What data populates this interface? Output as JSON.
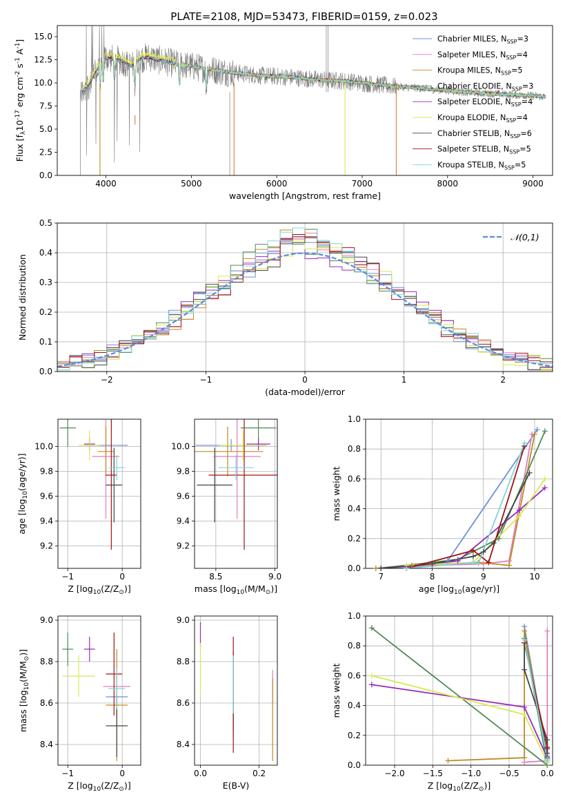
{
  "figure_title": "PLATE=2108, MJD=53473, FIBERID=0159, z=0.023",
  "series_names": [
    "Chabrier MILES, N$_{SSP}$=3",
    "Salpeter MILES, N$_{SSP}$=4",
    "Kroupa MILES, N$_{SSP}$=5",
    "Chabrier ELODIE, N$_{SSP}$=3",
    "Salpeter ELODIE, N$_{SSP}$=4",
    "Kroupa ELODIE, N$_{SSP}$=4",
    "Chabrier STELIB, N$_{SSP}$=6",
    "Salpeter STELIB, N$_{SSP}$=5",
    "Kroupa STELIB, N$_{SSP}$=5"
  ],
  "series_colors": [
    "#6a8fd8",
    "#e07ec0",
    "#c08a20",
    "#4e8a55",
    "#9a28b8",
    "#d8e850",
    "#444444",
    "#a01010",
    "#7fd4dc"
  ],
  "chart_data": [
    {
      "id": "spectrum",
      "type": "line",
      "title": "PLATE=2108, MJD=53473, FIBERID=0159, z=0.023",
      "xlabel": "wavelength [Angstrom, rest frame]",
      "ylabel": "Flux [f$_\\lambda$10$^{-17}$ erg cm$^{-2}$ s$^{-1}$ A$^{-1}$]",
      "xlim": [
        3430,
        9230
      ],
      "ylim": [
        0,
        16.2
      ],
      "xticks": [
        4000,
        5000,
        6000,
        7000,
        8000,
        9000
      ],
      "yticks": [
        0.0,
        2.5,
        5.0,
        7.5,
        10.0,
        12.5,
        15.0
      ],
      "ytick_labels": [
        "0.0",
        "2.5",
        "5.0",
        "7.5",
        "10.0",
        "12.5",
        "15.0"
      ],
      "legend": "upper right",
      "data_x": [
        3700,
        3800,
        3900,
        4000,
        4100,
        4200,
        4300,
        4400,
        4500,
        4600,
        4800,
        5000,
        5200,
        5400,
        5600,
        5800,
        6000,
        6200,
        6400,
        6600,
        6800,
        7000,
        7200,
        7400,
        7600,
        7800,
        8000,
        8200,
        8400,
        8600,
        8800,
        9000,
        9150
      ],
      "data_y": [
        8.8,
        9.8,
        11.5,
        12.7,
        12.6,
        12.3,
        11.8,
        12.6,
        12.8,
        12.5,
        12.1,
        11.8,
        11.5,
        11.2,
        11.0,
        10.8,
        10.7,
        10.6,
        10.4,
        10.3,
        10.2,
        10.0,
        9.8,
        9.6,
        9.5,
        9.3,
        9.2,
        9.0,
        8.9,
        8.8,
        8.7,
        8.6,
        8.5
      ]
    },
    {
      "id": "residuals",
      "type": "histogram",
      "xlabel": "(data-model)/error",
      "ylabel": "Normed distribution",
      "xlim": [
        -2.5,
        2.5
      ],
      "ylim": [
        0,
        0.5
      ],
      "xticks": [
        -2,
        -1,
        0,
        1,
        2
      ],
      "xtick_labels": [
        "−2",
        "−1",
        "0",
        "1",
        "2"
      ],
      "yticks": [
        0.0,
        0.1,
        0.2,
        0.3,
        0.4,
        0.5
      ],
      "ytick_labels": [
        "0.0",
        "0.1",
        "0.2",
        "0.3",
        "0.4",
        "0.5"
      ],
      "legend": "upper right",
      "reference_curve": "$\\mathcal{N}(0,1)$",
      "bin_width": 0.125
    },
    {
      "id": "age_vs_z",
      "type": "errorbar",
      "xlabel": "Z [log$_{10}$(Z/Z$_\\odot$)]",
      "ylabel": "age  [log$_{10}$(age/yr)]",
      "xlim": [
        -1.18,
        0.34
      ],
      "ylim": [
        9.02,
        10.22
      ],
      "xticks": [
        -1,
        0
      ],
      "xtick_labels": [
        "−1",
        "0"
      ],
      "yticks": [
        9.2,
        9.4,
        9.6,
        9.8,
        10.0
      ],
      "ytick_labels": [
        "9.2",
        "9.4",
        "9.6",
        "9.8",
        "10.0"
      ],
      "points": [
        {
          "x": -0.3,
          "xerr": 0.4,
          "y": 10.01,
          "yerr": 0.05
        },
        {
          "x": -0.3,
          "xerr": 0.25,
          "y": 9.92,
          "yerr": 0.5
        },
        {
          "x": -0.3,
          "xerr": 0.15,
          "y": 9.96,
          "yerr": 0.2
        },
        {
          "x": -1.0,
          "xerr": 0.15,
          "y": 10.15,
          "yerr": 0.15
        },
        {
          "x": -0.6,
          "xerr": 0.1,
          "y": 10.02,
          "yerr": 0.05
        },
        {
          "x": -0.6,
          "xerr": 0.2,
          "y": 10.01,
          "yerr": 0.12
        },
        {
          "x": -0.15,
          "xerr": 0.15,
          "y": 9.69,
          "yerr": 0.3
        },
        {
          "x": -0.2,
          "xerr": 0.1,
          "y": 9.77,
          "yerr": 0.6
        },
        {
          "x": -0.1,
          "xerr": 0.15,
          "y": 9.83,
          "yerr": 0.1
        }
      ]
    },
    {
      "id": "age_vs_mass",
      "type": "errorbar",
      "xlabel": "mass [log$_{10}$(M/M$_\\odot$)]",
      "ylabel": "",
      "xlim": [
        8.32,
        9.02
      ],
      "ylim": [
        9.02,
        10.22
      ],
      "xticks": [
        8.5,
        9.0
      ],
      "xtick_labels": [
        "8.5",
        "9.0"
      ],
      "yticks": [
        9.2,
        9.4,
        9.6,
        9.8,
        10.0
      ],
      "ytick_labels": [
        "9.2",
        "9.4",
        "9.6",
        "9.8",
        "10.0"
      ],
      "points": [
        {
          "x": 8.63,
          "xerr": 0.3,
          "y": 10.01,
          "yerr": 0.05
        },
        {
          "x": 8.68,
          "xerr": 0.2,
          "y": 9.92,
          "yerr": 0.5
        },
        {
          "x": 8.6,
          "xerr": 0.3,
          "y": 9.96,
          "yerr": 0.2
        },
        {
          "x": 8.86,
          "xerr": 0.15,
          "y": 10.15,
          "yerr": 0.15
        },
        {
          "x": 8.86,
          "xerr": 0.1,
          "y": 10.02,
          "yerr": 0.05
        },
        {
          "x": 8.73,
          "xerr": 0.2,
          "y": 10.01,
          "yerr": 0.12
        },
        {
          "x": 8.49,
          "xerr": 0.15,
          "y": 9.69,
          "yerr": 0.3
        },
        {
          "x": 8.74,
          "xerr": 0.3,
          "y": 9.77,
          "yerr": 0.6
        },
        {
          "x": 8.67,
          "xerr": 0.15,
          "y": 9.83,
          "yerr": 0.1
        }
      ]
    },
    {
      "id": "weight_vs_age",
      "type": "line",
      "xlabel": "age  [log$_{10}$(age/yr)]",
      "ylabel": "mass weight",
      "xlim": [
        6.7,
        10.35
      ],
      "ylim": [
        0,
        1.0
      ],
      "xticks": [
        7,
        8,
        9,
        10
      ],
      "xtick_labels": [
        "7",
        "8",
        "9",
        "10"
      ],
      "yticks": [
        0.0,
        0.2,
        0.4,
        0.6,
        0.8,
        1.0
      ],
      "ytick_labels": [
        "0.0",
        "0.2",
        "0.4",
        "0.6",
        "0.8",
        "1.0"
      ],
      "series": [
        {
          "x": [
            6.9,
            8.3,
            10.05
          ],
          "y": [
            0.0,
            0.05,
            0.93
          ]
        },
        {
          "x": [
            7.0,
            8.0,
            9.0,
            9.5,
            9.95
          ],
          "y": [
            0.0,
            0.02,
            0.03,
            0.05,
            0.9
          ]
        },
        {
          "x": [
            6.9,
            7.6,
            8.9,
            9.5,
            10.0
          ],
          "y": [
            0.0,
            0.02,
            0.04,
            0.02,
            0.9
          ]
        },
        {
          "x": [
            7.0,
            8.5,
            9.3,
            10.2
          ],
          "y": [
            0.0,
            0.06,
            0.2,
            0.92
          ]
        },
        {
          "x": [
            7.5,
            8.5,
            9.7,
            10.2
          ],
          "y": [
            0.01,
            0.05,
            0.39,
            0.54
          ]
        },
        {
          "x": [
            7.5,
            8.8,
            9.7,
            10.2
          ],
          "y": [
            0.02,
            0.04,
            0.35,
            0.6
          ]
        },
        {
          "x": [
            7.0,
            8.0,
            8.8,
            9.0,
            9.2,
            9.9
          ],
          "y": [
            0.0,
            0.03,
            0.08,
            0.11,
            0.17,
            0.64
          ]
        },
        {
          "x": [
            7.5,
            8.8,
            9.1,
            9.8
          ],
          "y": [
            0.0,
            0.12,
            0.04,
            0.82
          ]
        },
        {
          "x": [
            7.5,
            8.8,
            8.9,
            9.8
          ],
          "y": [
            0.0,
            0.04,
            0.03,
            0.84
          ]
        }
      ]
    },
    {
      "id": "mass_vs_z",
      "type": "errorbar",
      "xlabel": "Z [log$_{10}$(Z/Z$_\\odot$)]",
      "ylabel": "mass [log$_{10}$(M/M$_\\odot$)]",
      "xlim": [
        -1.18,
        0.34
      ],
      "ylim": [
        8.3,
        9.02
      ],
      "xticks": [
        -1,
        0
      ],
      "xtick_labels": [
        "−1",
        "0"
      ],
      "yticks": [
        8.4,
        8.6,
        8.8,
        9.0
      ],
      "ytick_labels": [
        "8.4",
        "8.6",
        "8.8",
        "9.0"
      ],
      "points": [
        {
          "x": -0.1,
          "xerr": 0.2,
          "y": 8.63,
          "yerr": 0.1
        },
        {
          "x": -0.1,
          "xerr": 0.25,
          "y": 8.68,
          "yerr": 0.08
        },
        {
          "x": -0.1,
          "xerr": 0.2,
          "y": 8.59,
          "yerr": 0.27
        },
        {
          "x": -1.0,
          "xerr": 0.1,
          "y": 8.86,
          "yerr": 0.08
        },
        {
          "x": -0.6,
          "xerr": 0.1,
          "y": 8.86,
          "yerr": 0.06
        },
        {
          "x": -0.8,
          "xerr": 0.3,
          "y": 8.73,
          "yerr": 0.1
        },
        {
          "x": -0.1,
          "xerr": 0.2,
          "y": 8.49,
          "yerr": 0.15
        },
        {
          "x": -0.15,
          "xerr": 0.15,
          "y": 8.74,
          "yerr": 0.2
        },
        {
          "x": -0.1,
          "xerr": 0.15,
          "y": 8.67,
          "yerr": 0.1
        }
      ]
    },
    {
      "id": "mass_vs_ebv",
      "type": "errorbar",
      "xlabel": "E(B-V)",
      "ylabel": "",
      "xlim": [
        -0.02,
        0.262
      ],
      "ylim": [
        8.3,
        9.02
      ],
      "xticks": [
        0.0,
        0.2
      ],
      "xtick_labels": [
        "0.0",
        "0.2"
      ],
      "yticks": [
        8.4,
        8.6,
        8.8,
        9.0
      ],
      "ytick_labels": [
        "8.4",
        "8.6",
        "8.8",
        "9.0"
      ],
      "points": [
        {
          "x": 0.112,
          "y": 8.63,
          "yerr": 0.2
        },
        {
          "x": 0.246,
          "y": 8.68,
          "yerr": 0.08
        },
        {
          "x": 0.246,
          "y": 8.52,
          "yerr": 0.2
        },
        {
          "x": 0.112,
          "y": 8.7,
          "yerr": 0.15
        },
        {
          "x": 0.0,
          "y": 8.93,
          "yerr": 0.06
        },
        {
          "x": 0.0,
          "y": 8.76,
          "yerr": 0.13
        },
        {
          "x": 0.112,
          "y": 8.62,
          "yerr": 0.15
        },
        {
          "x": 0.112,
          "y": 8.64,
          "yerr": 0.28
        },
        {
          "x": 0.112,
          "y": 8.69,
          "yerr": 0.14
        }
      ]
    },
    {
      "id": "weight_vs_z",
      "type": "line",
      "xlabel": "Z [log$_{10}$(Z/Z$_\\odot$)]",
      "ylabel": "mass weight",
      "xlim": [
        -2.38,
        0.07
      ],
      "ylim": [
        0,
        1.0
      ],
      "xticks": [
        -2.0,
        -1.5,
        -1.0,
        -0.5,
        0.0
      ],
      "xtick_labels": [
        "−2.0",
        "−1.5",
        "−1.0",
        "−0.5",
        "0.0"
      ],
      "yticks": [
        0.0,
        0.2,
        0.4,
        0.6,
        0.8,
        1.0
      ],
      "ytick_labels": [
        "0.0",
        "0.2",
        "0.4",
        "0.6",
        "0.8",
        "1.0"
      ],
      "series": [
        {
          "x": [
            -0.3,
            0.0,
            0.0
          ],
          "y": [
            0.93,
            0.05,
            0.02
          ]
        },
        {
          "x": [
            -0.3,
            0.0,
            0.0
          ],
          "y": [
            0.02,
            0.03,
            0.9
          ]
        },
        {
          "x": [
            -1.3,
            -0.3,
            -0.3,
            0.0,
            0.0
          ],
          "y": [
            0.03,
            0.05,
            0.9,
            0.04,
            0.0
          ]
        },
        {
          "x": [
            -2.3,
            0.0,
            -0.3,
            0.0
          ],
          "y": [
            0.92,
            0.0,
            0.85,
            0.06
          ]
        },
        {
          "x": [
            -2.3,
            -0.3,
            0.0
          ],
          "y": [
            0.54,
            0.39,
            0.05
          ]
        },
        {
          "x": [
            -2.3,
            -0.3,
            0.0
          ],
          "y": [
            0.6,
            0.34,
            0.02
          ]
        },
        {
          "x": [
            -0.3,
            -0.3,
            0.0,
            0.0,
            0.0
          ],
          "y": [
            0.82,
            0.64,
            0.17,
            0.11,
            0.08
          ]
        },
        {
          "x": [
            -0.3,
            0.0,
            0.0
          ],
          "y": [
            0.82,
            0.12,
            0.04
          ]
        },
        {
          "x": [
            -0.3,
            0.0,
            0.0
          ],
          "y": [
            0.84,
            0.04,
            0.03
          ]
        }
      ]
    }
  ]
}
